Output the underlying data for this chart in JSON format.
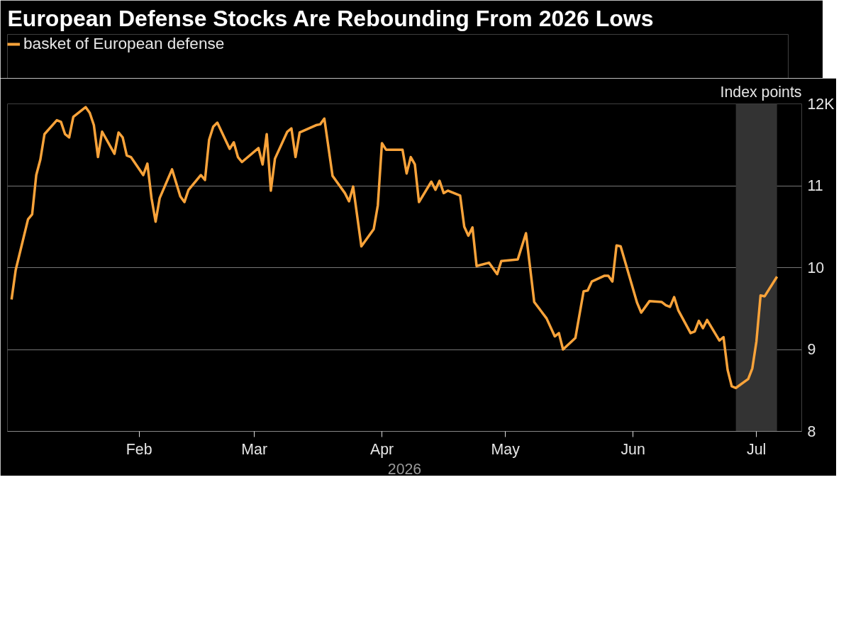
{
  "chart_data": {
    "type": "line",
    "title": "European Defense Stocks Are Rebounding From 2026 Lows",
    "xlabel": "2026",
    "ylabel": "Index points",
    "x": [
      "2026-01-01",
      "2026-01-02",
      "2026-01-05",
      "2026-01-06",
      "2026-01-07",
      "2026-01-08",
      "2026-01-09",
      "2026-01-12",
      "2026-01-13",
      "2026-01-14",
      "2026-01-15",
      "2026-01-16",
      "2026-01-19",
      "2026-01-20",
      "2026-01-21",
      "2026-01-22",
      "2026-01-23",
      "2026-01-26",
      "2026-01-27",
      "2026-01-28",
      "2026-01-29",
      "2026-01-30",
      "2026-02-02",
      "2026-02-03",
      "2026-02-04",
      "2026-02-05",
      "2026-02-06",
      "2026-02-09",
      "2026-02-11",
      "2026-02-12",
      "2026-02-13",
      "2026-02-16",
      "2026-02-17",
      "2026-02-18",
      "2026-02-19",
      "2026-02-20",
      "2026-02-23",
      "2026-02-24",
      "2026-02-25",
      "2026-02-26",
      "2026-03-02",
      "2026-03-03",
      "2026-03-04",
      "2026-03-05",
      "2026-03-06",
      "2026-03-09",
      "2026-03-10",
      "2026-03-11",
      "2026-03-12",
      "2026-03-16",
      "2026-03-17",
      "2026-03-18",
      "2026-03-20",
      "2026-03-23",
      "2026-03-24",
      "2026-03-25",
      "2026-03-27",
      "2026-03-30",
      "2026-03-31",
      "2026-04-01",
      "2026-04-02",
      "2026-04-06",
      "2026-04-07",
      "2026-04-08",
      "2026-04-09",
      "2026-04-10",
      "2026-04-13",
      "2026-04-14",
      "2026-04-15",
      "2026-04-16",
      "2026-04-17",
      "2026-04-20",
      "2026-04-21",
      "2026-04-22",
      "2026-04-23",
      "2026-04-24",
      "2026-04-27",
      "2026-04-29",
      "2026-04-30",
      "2026-05-04",
      "2026-05-06",
      "2026-05-08",
      "2026-05-11",
      "2026-05-13",
      "2026-05-14",
      "2026-05-15",
      "2026-05-18",
      "2026-05-20",
      "2026-05-21",
      "2026-05-22",
      "2026-05-25",
      "2026-05-26",
      "2026-05-27",
      "2026-05-28",
      "2026-05-29",
      "2026-06-02",
      "2026-06-03",
      "2026-06-05",
      "2026-06-08",
      "2026-06-09",
      "2026-06-10",
      "2026-06-11",
      "2026-06-12",
      "2026-06-15",
      "2026-06-16",
      "2026-06-17",
      "2026-06-18",
      "2026-06-19",
      "2026-06-22",
      "2026-06-23",
      "2026-06-24",
      "2026-06-25",
      "2026-06-26",
      "2026-06-29",
      "2026-06-30",
      "2026-07-01",
      "2026-07-02",
      "2026-07-03",
      "2026-07-06"
    ],
    "series": [
      {
        "name": "basket of European defense",
        "color": "#f9a33a",
        "values": [
          9.61,
          9.97,
          10.59,
          10.65,
          11.13,
          11.32,
          11.63,
          11.8,
          11.78,
          11.63,
          11.59,
          11.84,
          11.96,
          11.89,
          11.74,
          11.35,
          11.66,
          11.39,
          11.65,
          11.59,
          11.37,
          11.35,
          11.13,
          11.27,
          10.85,
          10.56,
          10.85,
          11.2,
          10.87,
          10.8,
          10.95,
          11.13,
          11.07,
          11.56,
          11.72,
          11.77,
          11.45,
          11.53,
          11.35,
          11.29,
          11.46,
          11.26,
          11.63,
          10.94,
          11.33,
          11.66,
          11.7,
          11.35,
          11.65,
          11.74,
          11.75,
          11.82,
          11.12,
          10.91,
          10.81,
          10.99,
          10.26,
          10.47,
          10.76,
          11.52,
          11.44,
          11.44,
          11.15,
          11.35,
          11.26,
          10.8,
          11.05,
          10.95,
          11.06,
          10.91,
          10.94,
          10.88,
          10.5,
          10.39,
          10.49,
          10.02,
          10.06,
          9.92,
          10.08,
          10.1,
          10.42,
          9.58,
          9.38,
          9.16,
          9.2,
          9.0,
          9.14,
          9.71,
          9.72,
          9.83,
          9.9,
          9.9,
          9.83,
          10.27,
          10.26,
          9.57,
          9.45,
          9.59,
          9.58,
          9.54,
          9.52,
          9.64,
          9.48,
          9.2,
          9.22,
          9.35,
          9.26,
          9.36,
          9.11,
          9.15,
          8.75,
          8.55,
          8.53,
          8.64,
          8.77,
          9.1,
          9.66,
          9.65,
          9.89
        ]
      }
    ],
    "xlim": [
      "2025-12-31",
      "2026-07-12"
    ],
    "xticks": [
      {
        "value": "2026-02-01",
        "label": "Feb"
      },
      {
        "value": "2026-03-01",
        "label": "Mar"
      },
      {
        "value": "2026-04-01",
        "label": "Apr"
      },
      {
        "value": "2026-05-01",
        "label": "May"
      },
      {
        "value": "2026-06-01",
        "label": "Jun"
      },
      {
        "value": "2026-07-01",
        "label": "Jul"
      }
    ],
    "ylim": [
      8,
      12
    ],
    "yticks": [
      8,
      9,
      10,
      11,
      {
        "value": 12,
        "label": "12K"
      }
    ],
    "bands": [
      {
        "axis": "x",
        "from": "2026-06-26",
        "to": "2026-07-06",
        "label": null,
        "color": "#333333"
      }
    ],
    "grid": "y",
    "legend": "top left",
    "line_style": "solid",
    "marker": "none"
  }
}
